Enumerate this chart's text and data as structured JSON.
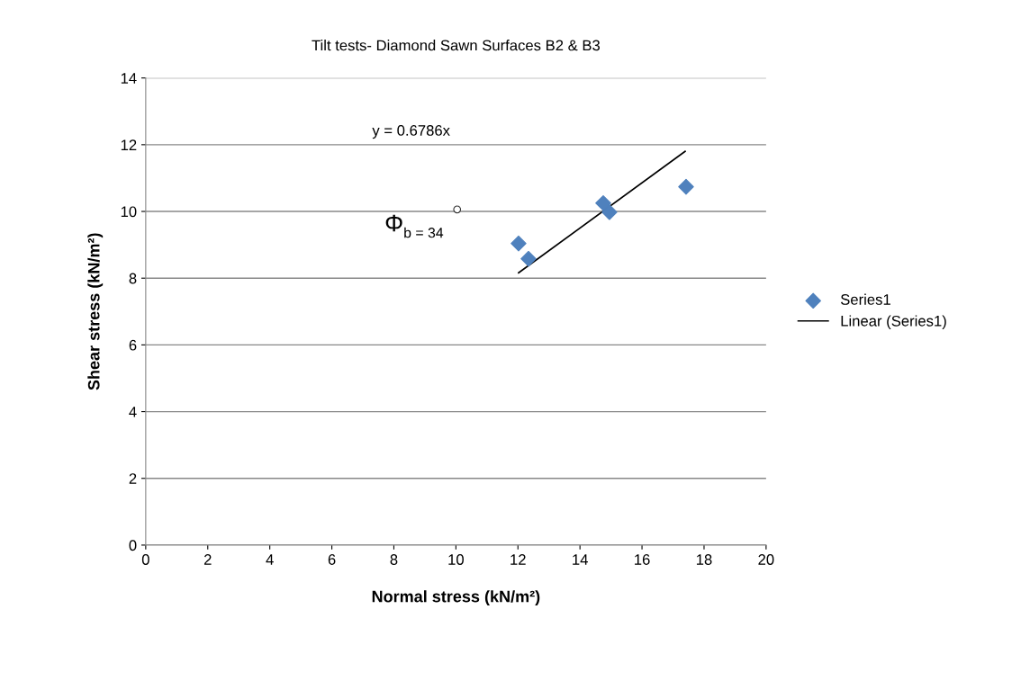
{
  "chart_data": {
    "type": "scatter",
    "title": "Tilt tests- Diamond Sawn Surfaces B2 & B3",
    "xlabel": "Normal stress (kN/m²)",
    "ylabel": "Shear stress (kN/m²)",
    "series": [
      {
        "name": "Series1",
        "marker": "diamond",
        "color": "#4f81bd",
        "x": [
          12.02,
          12.34,
          14.75,
          14.95,
          17.42
        ],
        "values": [
          9.04,
          8.58,
          10.25,
          9.98,
          10.74
        ]
      },
      {
        "name": "Linear (Series1)",
        "type": "line",
        "marker": "none",
        "color": "#000000",
        "x": [
          12.02,
          17.39
        ],
        "values": [
          8.16,
          11.8
        ]
      },
      {
        "marker": "circle",
        "color": "#ffffff",
        "x": [
          10.04
        ],
        "values": [
          10.06
        ]
      }
    ],
    "annotations": [
      "y = 0.6786x",
      "Φ$_{b = 34}$"
    ],
    "xlim": [
      0,
      20
    ],
    "ylim": [
      0,
      14
    ],
    "xticks": [
      0,
      2,
      4,
      6,
      8,
      10,
      12,
      14,
      16,
      18,
      20
    ],
    "yticks": [
      0,
      2,
      4,
      6,
      8,
      10,
      12,
      14
    ],
    "grid": "y",
    "legend": "right"
  }
}
